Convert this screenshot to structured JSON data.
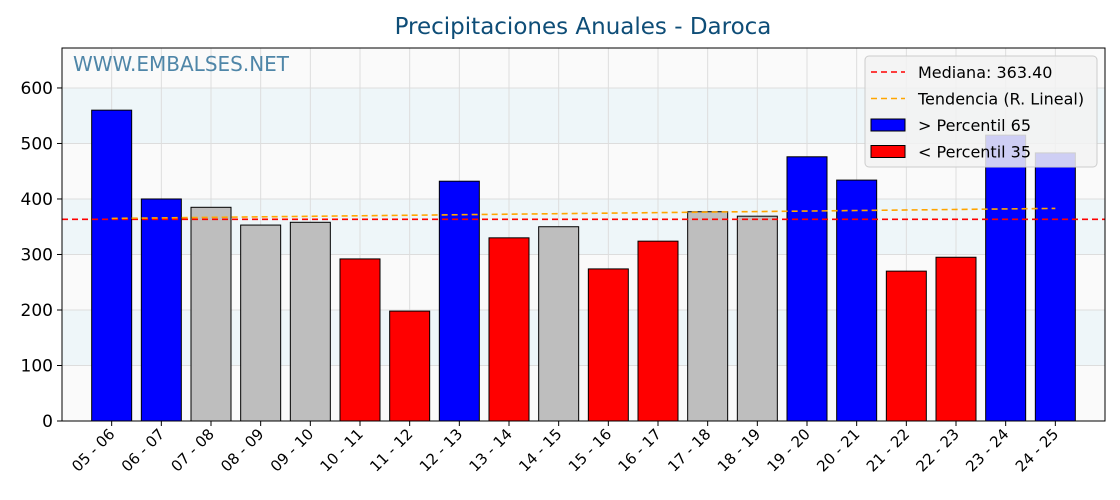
{
  "chart_data": {
    "type": "bar",
    "title": "Precipitaciones Anuales - Daroca",
    "watermark": "WWW.EMBALSES.NET",
    "xlabel": "",
    "ylabel": "",
    "ylim": [
      0,
      672
    ],
    "yticks": [
      0,
      100,
      200,
      300,
      400,
      500,
      600
    ],
    "grid": true,
    "legend_position": "top-right",
    "categories": [
      "05 - 06",
      "06 - 07",
      "07 - 08",
      "08 - 09",
      "09 - 10",
      "10 - 11",
      "11 - 12",
      "12 - 13",
      "13 - 14",
      "14 - 15",
      "15 - 16",
      "16 - 17",
      "17 - 18",
      "18 - 19",
      "19 - 20",
      "20 - 21",
      "21 - 22",
      "22 - 23",
      "23 - 24",
      "24 - 25"
    ],
    "values": [
      560,
      400,
      385,
      353,
      358,
      292,
      198,
      432,
      330,
      350,
      274,
      324,
      377,
      369,
      476,
      434,
      270,
      295,
      515,
      483
    ],
    "classes": [
      "high",
      "high",
      "mid",
      "mid",
      "mid",
      "low",
      "low",
      "high",
      "low",
      "mid",
      "low",
      "low",
      "mid",
      "mid",
      "high",
      "high",
      "low",
      "low",
      "high",
      "high"
    ],
    "colors": {
      "high": "#0000ff",
      "low": "#ff0000",
      "mid": "#bebebe",
      "median": "#ff0000",
      "trend": "#ffa500",
      "title": "#0e4d77",
      "watermark": "#4f86a8"
    },
    "median": 363.4,
    "trend": {
      "start": 365,
      "end": 383
    },
    "legend": [
      {
        "label": "Mediana: 363.40",
        "kind": "median"
      },
      {
        "label": "Tendencia (R. Lineal)",
        "kind": "trend"
      },
      {
        "label": " > Percentil 65",
        "kind": "high"
      },
      {
        "label": " < Percentil 35",
        "kind": "low"
      }
    ]
  }
}
